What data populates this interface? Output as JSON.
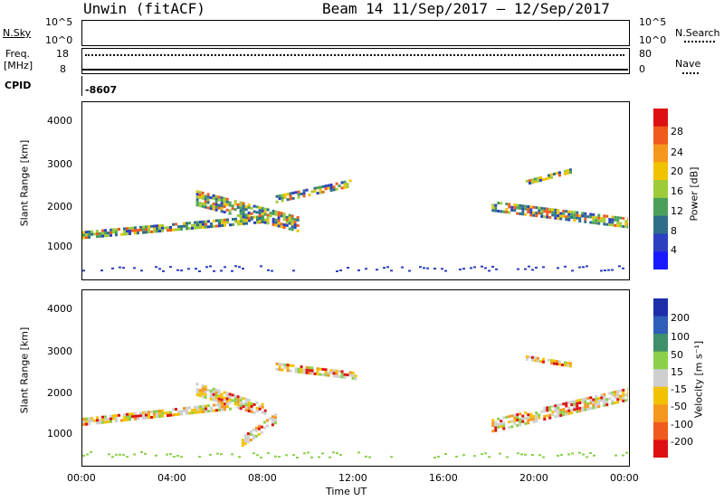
{
  "header": {
    "station": "Unwin (fitACF)",
    "beam_range": "Beam 14  11/Sep/2017 – 12/Sep/2017"
  },
  "strip_nsky": {
    "left_label": "N.Sky",
    "ytick_top": "10^5",
    "ytick_bottom": "10^0",
    "right_tick_top": "10^5",
    "right_tick_bottom": "10^0",
    "right_label": "N.Search"
  },
  "strip_freq": {
    "left_label_line1": "Freq.",
    "left_label_line2": "[MHz]",
    "ytick_top": "18",
    "ytick_bottom": "8",
    "right_tick_top": "80",
    "right_tick_bottom": "0",
    "right_label": "Nave"
  },
  "strip_cpid": {
    "left_label": "CPID",
    "value": "-8607"
  },
  "chart_data": [
    {
      "type": "heatmap",
      "panel": "power",
      "ylabel": "Slant Range [km]",
      "xlabel": "",
      "yticks": [
        "4000",
        "3000",
        "2000",
        "1000"
      ],
      "ylim": [
        200,
        4600
      ],
      "xlim_hours": [
        0,
        24
      ],
      "colorbar": {
        "label": "Power [dB]",
        "ticks": [
          "28",
          "24",
          "20",
          "16",
          "12",
          "8",
          "4"
        ],
        "colors": [
          "#dd1111",
          "#f05a1e",
          "#f5961e",
          "#f2c200",
          "#9ecb3a",
          "#4aa05a",
          "#2f6e8a",
          "#2b3fc0",
          "#1a1aff"
        ]
      },
      "bands": [
        {
          "name": "main-trail",
          "x_start_h": 0.0,
          "x_end_h": 8.0,
          "range_start_km": 1300,
          "range_end_km": 1700
        },
        {
          "name": "rising-arc",
          "x_start_h": 5.0,
          "x_end_h": 9.5,
          "range_start_km": 1100,
          "range_end_km": 2200
        },
        {
          "name": "upper-arc",
          "x_start_h": 8.5,
          "x_end_h": 11.8,
          "range_start_km": 2200,
          "range_end_km": 2600
        },
        {
          "name": "evening-arc",
          "x_start_h": 18.0,
          "x_end_h": 24.0,
          "range_start_km": 1300,
          "range_end_km": 2000
        },
        {
          "name": "evening-high",
          "x_start_h": 19.5,
          "x_end_h": 21.5,
          "range_start_km": 2600,
          "range_end_km": 2900
        }
      ]
    },
    {
      "type": "heatmap",
      "panel": "velocity",
      "ylabel": "Slant Range [km]",
      "xlabel": "Time UT",
      "yticks": [
        "4000",
        "3000",
        "2000",
        "1000"
      ],
      "xticks": [
        "00:00",
        "04:00",
        "08:00",
        "12:00",
        "16:00",
        "20:00",
        "00:00"
      ],
      "ylim": [
        200,
        4600
      ],
      "xlim_hours": [
        0,
        24
      ],
      "colorbar": {
        "label": "Velocity [m s⁻¹]",
        "ticks": [
          "200",
          "100",
          "50",
          "15",
          "-15",
          "-50",
          "-100",
          "-200"
        ],
        "colors": [
          "#1c2fa8",
          "#2f5fb8",
          "#3e8f6a",
          "#8bd04a",
          "#cfcfcf",
          "#f2c200",
          "#f5961e",
          "#f05a1e",
          "#dd1111"
        ]
      },
      "bands": [
        {
          "name": "grey-trail",
          "x_start_h": 0.0,
          "x_end_h": 6.5,
          "range_start_km": 1300,
          "range_end_km": 1700
        },
        {
          "name": "orange-arc",
          "x_start_h": 5.0,
          "x_end_h": 8.0,
          "range_start_km": 1200,
          "range_end_km": 2100
        },
        {
          "name": "red-patch",
          "x_start_h": 7.0,
          "x_end_h": 8.5,
          "range_start_km": 800,
          "range_end_km": 1400
        },
        {
          "name": "grey-upper",
          "x_start_h": 8.5,
          "x_end_h": 12.0,
          "range_start_km": 2300,
          "range_end_km": 2700
        },
        {
          "name": "grey-evening",
          "x_start_h": 18.0,
          "x_end_h": 24.0,
          "range_start_km": 1200,
          "range_end_km": 2000
        },
        {
          "name": "mixed-high",
          "x_start_h": 19.5,
          "x_end_h": 21.5,
          "range_start_km": 2600,
          "range_end_km": 2900
        }
      ]
    }
  ]
}
